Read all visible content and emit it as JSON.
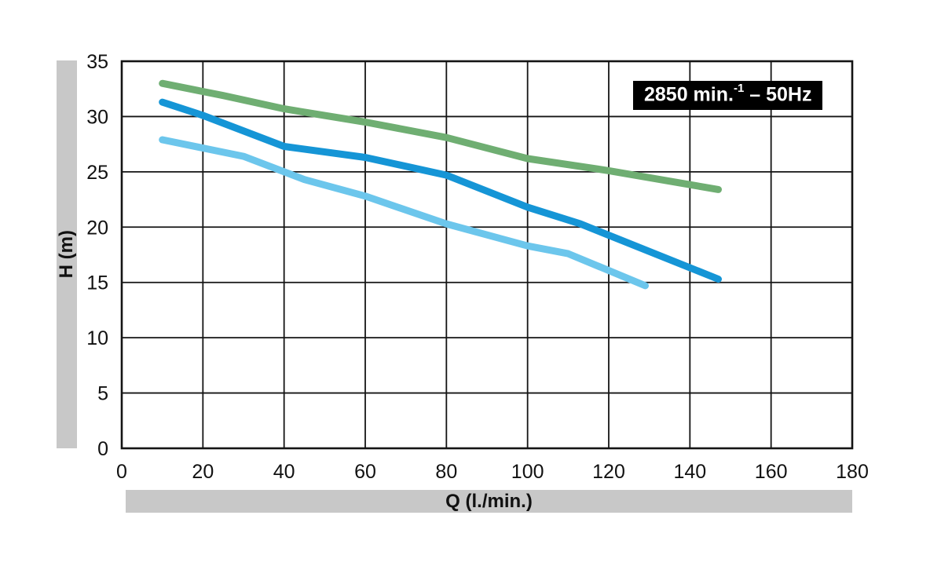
{
  "chart_data": {
    "type": "line",
    "title": "",
    "xlabel": "Q (l./min.)",
    "ylabel": "H (m)",
    "xlim": [
      0,
      180
    ],
    "ylim": [
      0,
      35
    ],
    "x_ticks": [
      0,
      20,
      40,
      60,
      80,
      100,
      120,
      140,
      160,
      180
    ],
    "y_ticks": [
      0,
      5,
      10,
      15,
      20,
      25,
      30,
      35
    ],
    "grid": true,
    "legend": "none",
    "series": [
      {
        "name": "curve-green",
        "color": "#6fae72",
        "points": [
          [
            10,
            33
          ],
          [
            25,
            31.9
          ],
          [
            40,
            30.7
          ],
          [
            60,
            29.5
          ],
          [
            80,
            28.1
          ],
          [
            100,
            26.2
          ],
          [
            120,
            25.1
          ],
          [
            147,
            23.4
          ]
        ]
      },
      {
        "name": "curve-dark-blue",
        "color": "#1595d6",
        "points": [
          [
            10,
            31.3
          ],
          [
            20,
            30.1
          ],
          [
            40,
            27.3
          ],
          [
            60,
            26.3
          ],
          [
            80,
            24.7
          ],
          [
            100,
            21.8
          ],
          [
            113,
            20.3
          ],
          [
            147,
            15.3
          ]
        ]
      },
      {
        "name": "curve-light-blue",
        "color": "#6cc6ec",
        "points": [
          [
            10,
            27.9
          ],
          [
            30,
            26.4
          ],
          [
            45,
            24.3
          ],
          [
            60,
            22.8
          ],
          [
            80,
            20.3
          ],
          [
            100,
            18.3
          ],
          [
            110,
            17.6
          ],
          [
            129,
            14.7
          ]
        ]
      }
    ]
  },
  "annotation": {
    "prefix": "2850 min.",
    "sup": "-1",
    "suffix": "– 50Hz"
  }
}
